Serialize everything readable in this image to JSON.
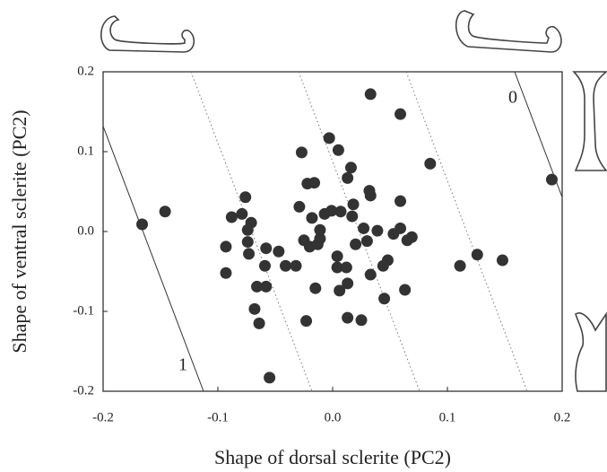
{
  "chart_data": {
    "type": "scatter",
    "x_label": "Shape of dorsal sclerite (PC2)",
    "y_label": "Shape of ventral sclerite (PC2)",
    "annotations": [
      "0",
      "1"
    ],
    "color": "#333333",
    "xlim": [
      -0.2,
      0.2
    ],
    "ylim": [
      -0.2,
      0.2
    ],
    "xticks": [
      -0.2,
      -0.1,
      {
        "value": 0,
        "label": "0.0"
      },
      0.1,
      0.2
    ],
    "yticks": [
      -0.2,
      -0.1,
      {
        "value": 0,
        "label": "0.0"
      },
      0.1,
      0.2
    ],
    "x": [
      -0.166,
      -0.146,
      0.191,
      0.033,
      0.059,
      0.085,
      -0.003,
      0.005,
      -0.027,
      0.016,
      0.013,
      -0.022,
      -0.016,
      0.032,
      0.033,
      0.059,
      -0.076,
      -0.029,
      0.018,
      -0.088,
      -0.079,
      -0.018,
      -0.007,
      -0.001,
      0.007,
      0.017,
      -0.071,
      -0.074,
      -0.011,
      0.027,
      0.039,
      0.059,
      0.053,
      0.069,
      0.065,
      -0.093,
      -0.074,
      -0.073,
      -0.058,
      -0.047,
      -0.025,
      -0.02,
      -0.013,
      -0.011,
      0.02,
      0.03,
      0.004,
      0.004,
      0.012,
      0.048,
      0.044,
      -0.093,
      -0.059,
      -0.041,
      -0.032,
      0.033,
      0.013,
      0.006,
      -0.015,
      -0.066,
      -0.058,
      0.063,
      0.045,
      -0.068,
      -0.064,
      -0.023,
      0.013,
      0.025,
      0.111,
      0.126,
      0.148,
      -0.055
    ],
    "y": [
      0.009,
      0.025,
      0.065,
      0.172,
      0.147,
      0.085,
      0.117,
      0.102,
      0.099,
      0.08,
      0.067,
      0.06,
      0.061,
      0.051,
      0.045,
      0.038,
      0.043,
      0.031,
      0.034,
      0.018,
      0.022,
      0.017,
      0.022,
      0.026,
      0.025,
      0.019,
      0.011,
      0.002,
      0.002,
      0.004,
      0.001,
      0.004,
      -0.003,
      -0.007,
      -0.011,
      -0.019,
      -0.013,
      -0.028,
      -0.021,
      -0.025,
      -0.011,
      -0.019,
      -0.016,
      -0.009,
      -0.016,
      -0.012,
      -0.031,
      -0.045,
      -0.045,
      -0.036,
      -0.043,
      -0.052,
      -0.043,
      -0.043,
      -0.043,
      -0.054,
      -0.065,
      -0.074,
      -0.071,
      -0.069,
      -0.069,
      -0.073,
      -0.084,
      -0.097,
      -0.115,
      -0.112,
      -0.108,
      -0.111,
      -0.043,
      -0.029,
      -0.036,
      -0.183
    ]
  }
}
